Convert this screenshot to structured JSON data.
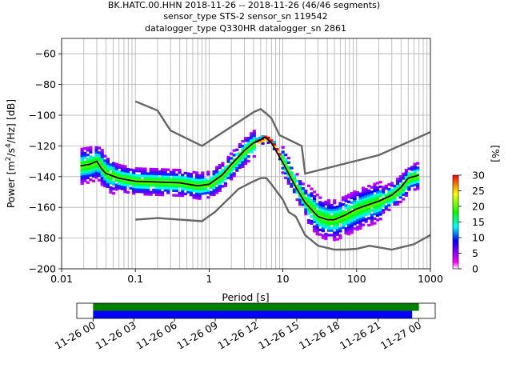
{
  "title_lines": [
    "BK.HATC.00.HHN   2018-11-26 -- 2018-11-26  (46/46 segments)",
    "sensor_type STS-2 sensor_sn 119542",
    "datalogger_type Q330HR datalogger_sn 2861"
  ],
  "chart_data": [
    {
      "type": "heatmap",
      "xlabel": "Period [s]",
      "xscale": "log",
      "xlim": [
        0.01,
        1000
      ],
      "xticks": [
        0.01,
        0.1,
        1,
        10,
        100,
        1000
      ],
      "xtick_labels": [
        "0.01",
        "0.1",
        "1",
        "10",
        "100",
        "1000"
      ],
      "ylim": [
        -200,
        -50
      ],
      "yticks": [
        -200,
        -180,
        -160,
        -140,
        -120,
        -100,
        -80,
        -60
      ],
      "ytick_labels": [
        "−200",
        "−180",
        "−160",
        "−140",
        "−120",
        "−100",
        "−80",
        "−60"
      ],
      "grid": true,
      "colorbar": {
        "unit": "[%]",
        "range": [
          0,
          30
        ],
        "ticks": [
          0,
          5,
          10,
          15,
          20,
          25,
          30
        ],
        "tick_labels": [
          "0",
          "5",
          "10",
          "15",
          "20",
          "25",
          "30"
        ],
        "stops": [
          "#ffffff",
          "#ff00ff",
          "#0000ff",
          "#00ffff",
          "#00ff00",
          "#ffff00",
          "#ff0000"
        ]
      },
      "mean_curve": {
        "color": "#000000",
        "x": [
          0.018,
          0.024,
          0.03,
          0.035,
          0.04,
          0.06,
          0.1,
          0.2,
          0.4,
          0.7,
          1.0,
          1.5,
          2.0,
          3.0,
          4.0,
          5.0,
          5.5,
          6.0,
          7.0,
          10.0,
          15.0,
          20.0,
          30.0,
          40.0,
          50.0,
          70.0,
          100.0,
          150.0,
          200.0,
          300.0,
          400.0,
          500.0,
          700.0
        ],
        "y": [
          -133,
          -132,
          -130,
          -135,
          -138,
          -141,
          -143,
          -143.5,
          -144,
          -146,
          -145,
          -139,
          -132,
          -123,
          -118,
          -116,
          -114.5,
          -115,
          -118,
          -131,
          -147,
          -157,
          -166,
          -168,
          -168,
          -165,
          -161,
          -158,
          -156,
          -152,
          -147,
          -141,
          -139
        ]
      },
      "reference_curves": {
        "color": "#666666",
        "curves": [
          {
            "x": [
              0.1,
              0.2,
              0.3,
              0.8,
              4.0,
              5.0,
              6.0,
              7.0,
              9.0,
              18.0,
              20.0,
              200.0,
              1000.0
            ],
            "y": [
              -91,
              -97,
              -110,
              -120,
              -98,
              -96,
              -99,
              -102,
              -113,
              -120,
              -138,
              -126,
              -111
            ]
          },
          {
            "x": [
              0.1,
              0.2,
              0.8,
              1.2,
              2.5,
              4.0,
              5.0,
              6.0,
              7.0,
              10.0,
              12.0,
              15.0,
              20.0,
              30.0,
              50.0,
              70.0,
              100.0,
              150.0,
              300.0,
              600.0,
              1000.0
            ],
            "y": [
              -168,
              -167,
              -169,
              -163,
              -148,
              -143,
              -141,
              -141,
              -145,
              -155,
              -163,
              -166,
              -178,
              -185,
              -187.5,
              -187.5,
              -187,
              -185,
              -187.5,
              -184,
              -178
            ]
          }
        ]
      },
      "density_bands": [
        {
          "name": "noise-floor-top",
          "from": [
            0.018,
            -122,
            -123,
            5
          ]
        },
        {
          "name": "noise-floor-bottom",
          "from": [
            0.018,
            -149,
            -150,
            5
          ]
        }
      ]
    },
    {
      "type": "bar",
      "role": "data-availability",
      "time_axis": {
        "ticks": [
          "11-26 00",
          "11-26 03",
          "11-26 06",
          "11-26 09",
          "11-26 12",
          "11-26 15",
          "11-26 18",
          "11-26 21",
          "11-27 00"
        ],
        "hours": [
          0,
          3,
          6,
          9,
          12,
          15,
          18,
          21,
          24
        ],
        "range_hours": [
          -1.2,
          25.2
        ]
      },
      "series": [
        {
          "color": "#008000",
          "start_hour": 0.0,
          "end_hour": 24.0
        },
        {
          "color": "#0000ff",
          "start_hour": 0.0,
          "end_hour": 23.5
        }
      ]
    }
  ]
}
